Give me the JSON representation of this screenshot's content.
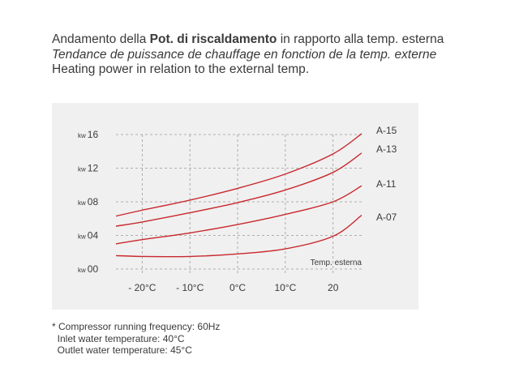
{
  "title": {
    "it_prefix": "Andamento della ",
    "it_bold": "Pot. di riscaldamento",
    "it_suffix": " in rapporto alla temp. esterna",
    "fr": "Tendance de puissance de chauffage en fonction de la temp. externe",
    "en": "Heating power in relation to the external temp."
  },
  "notes": [
    "* Compressor running frequency: 60Hz",
    "  Inlet water temperature: 40°C",
    "  Outlet water temperature: 45°C"
  ],
  "colors": {
    "line": "#c8282d",
    "panel": "#f0f0f0",
    "grid": "#9a9a9a",
    "text": "#3a3a3a"
  },
  "chart_data": {
    "type": "line",
    "xlabel": "Temp. esterna",
    "x_ticks": [
      -20,
      -10,
      0,
      10,
      20
    ],
    "x_tick_labels": [
      "- 20°C",
      "- 10°C",
      "0°C",
      "10°C",
      "20"
    ],
    "y_ticks": [
      0,
      4,
      8,
      12,
      16
    ],
    "y_tick_labels": [
      "kw 00",
      "kw 04",
      "kw 08",
      "kw 12",
      "kw 16"
    ],
    "xlim": [
      -25.5,
      26
    ],
    "ylim": [
      0,
      16
    ],
    "grid": "vertical dashed",
    "legend": "right, labels at line ends",
    "series": [
      {
        "name": "A-15",
        "x": [
          -25.5,
          -20,
          -10,
          0,
          10,
          20,
          26
        ],
        "y": [
          6.3,
          7.0,
          8.2,
          9.6,
          11.3,
          13.7,
          16.1
        ]
      },
      {
        "name": "A-13",
        "x": [
          -25.5,
          -20,
          -10,
          0,
          10,
          20,
          26
        ],
        "y": [
          5.1,
          5.6,
          6.7,
          7.9,
          9.4,
          11.5,
          13.8
        ]
      },
      {
        "name": "A-11",
        "x": [
          -25.5,
          -20,
          -10,
          0,
          10,
          20,
          26
        ],
        "y": [
          3.0,
          3.5,
          4.3,
          5.3,
          6.5,
          8.0,
          9.9
        ]
      },
      {
        "name": "A-07",
        "x": [
          -25.5,
          -20,
          -10,
          0,
          10,
          20,
          26
        ],
        "y": [
          1.6,
          1.5,
          1.5,
          1.8,
          2.4,
          3.9,
          6.4
        ]
      }
    ]
  }
}
